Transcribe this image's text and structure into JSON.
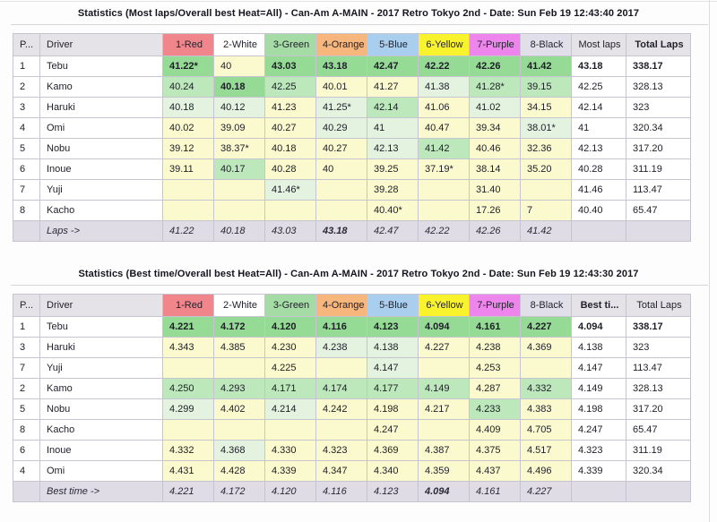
{
  "colors": {
    "heat": {
      "red": "#f0868c",
      "white": "#ffffff",
      "green": "#a5dba5",
      "orange": "#f6b67c",
      "blue": "#aacfee",
      "yellow": "#f9f32e",
      "purple": "#ee85ec",
      "black": "#e1dfe9",
      "gray": "#e5e3e8"
    },
    "cell": {
      "g1": "#95db95",
      "g2": "#bde8bb",
      "g3": "#e3f3e0",
      "y": "#fbface",
      "w": "#ffffff"
    },
    "footer_bg": "#dfdce5"
  },
  "tables": [
    {
      "title": "Statistics (Most laps/Overall best Heat=All) - Can-Am A-MAIN - 2017 Retro Tokyo 2nd - Date: Sun Feb 19 12:43:40 2017",
      "columns": [
        {
          "label": "P...",
          "bg": "gray"
        },
        {
          "label": "Driver",
          "bg": "gray"
        },
        {
          "label": "1-Red",
          "bg": "red"
        },
        {
          "label": "2-White",
          "bg": "white"
        },
        {
          "label": "3-Green",
          "bg": "green"
        },
        {
          "label": "4-Orange",
          "bg": "orange"
        },
        {
          "label": "5-Blue",
          "bg": "blue"
        },
        {
          "label": "6-Yellow",
          "bg": "yellow"
        },
        {
          "label": "7-Purple",
          "bg": "purple"
        },
        {
          "label": "8-Black",
          "bg": "black"
        },
        {
          "label": "Most laps",
          "bg": "gray"
        },
        {
          "label": "Total Laps",
          "bg": "gray",
          "bold": true
        }
      ],
      "rows": [
        {
          "pos": "1",
          "driver": "Tebu",
          "cells": [
            {
              "v": "41.22*",
              "c": "g1",
              "b": true
            },
            {
              "v": "40",
              "c": "y"
            },
            {
              "v": "43.03",
              "c": "g1",
              "b": true
            },
            {
              "v": "43.18",
              "c": "g1",
              "b": true
            },
            {
              "v": "42.47",
              "c": "g1",
              "b": true
            },
            {
              "v": "42.22",
              "c": "g1",
              "b": true
            },
            {
              "v": "42.26",
              "c": "g1",
              "b": true
            },
            {
              "v": "41.42",
              "c": "g1",
              "b": true
            }
          ],
          "summary": {
            "v": "43.18",
            "b": true
          },
          "total": {
            "v": "338.17",
            "b": true
          }
        },
        {
          "pos": "2",
          "driver": "Kamo",
          "cells": [
            {
              "v": "40.24",
              "c": "g2"
            },
            {
              "v": "40.18",
              "c": "g1",
              "b": true
            },
            {
              "v": "42.25",
              "c": "g2"
            },
            {
              "v": "40.01",
              "c": "y"
            },
            {
              "v": "41.27",
              "c": "y"
            },
            {
              "v": "41.38",
              "c": "g3"
            },
            {
              "v": "41.28*",
              "c": "g2"
            },
            {
              "v": "39.15",
              "c": "g2"
            }
          ],
          "summary": {
            "v": "42.25"
          },
          "total": {
            "v": "328.13"
          }
        },
        {
          "pos": "3",
          "driver": "Haruki",
          "cells": [
            {
              "v": "40.18",
              "c": "g3"
            },
            {
              "v": "40.12",
              "c": "g3"
            },
            {
              "v": "41.23",
              "c": "y"
            },
            {
              "v": "41.25*",
              "c": "g3"
            },
            {
              "v": "42.14",
              "c": "g2"
            },
            {
              "v": "41.06",
              "c": "y"
            },
            {
              "v": "41.02",
              "c": "g3"
            },
            {
              "v": "34.15",
              "c": "y"
            }
          ],
          "summary": {
            "v": "42.14"
          },
          "total": {
            "v": "323"
          }
        },
        {
          "pos": "4",
          "driver": "Omi",
          "cells": [
            {
              "v": "40.02",
              "c": "y"
            },
            {
              "v": "39.09",
              "c": "y"
            },
            {
              "v": "40.27",
              "c": "y"
            },
            {
              "v": "40.29",
              "c": "g3"
            },
            {
              "v": "41",
              "c": "g3"
            },
            {
              "v": "40.47",
              "c": "y"
            },
            {
              "v": "39.34",
              "c": "y"
            },
            {
              "v": "38.01*",
              "c": "g3"
            }
          ],
          "summary": {
            "v": "41"
          },
          "total": {
            "v": "320.34"
          }
        },
        {
          "pos": "5",
          "driver": "Nobu",
          "cells": [
            {
              "v": "39.12",
              "c": "y"
            },
            {
              "v": "38.37*",
              "c": "y"
            },
            {
              "v": "40.18",
              "c": "y"
            },
            {
              "v": "40.27",
              "c": "y"
            },
            {
              "v": "42.13",
              "c": "g3"
            },
            {
              "v": "41.42",
              "c": "g2"
            },
            {
              "v": "40.46",
              "c": "y"
            },
            {
              "v": "32.36",
              "c": "y"
            }
          ],
          "summary": {
            "v": "42.13"
          },
          "total": {
            "v": "317.20"
          }
        },
        {
          "pos": "6",
          "driver": "Inoue",
          "cells": [
            {
              "v": "39.11",
              "c": "y"
            },
            {
              "v": "40.17",
              "c": "g2"
            },
            {
              "v": "40.28",
              "c": "y"
            },
            {
              "v": "40",
              "c": "y"
            },
            {
              "v": "39.25",
              "c": "y"
            },
            {
              "v": "37.19*",
              "c": "y"
            },
            {
              "v": "38.14",
              "c": "y"
            },
            {
              "v": "35.20",
              "c": "y"
            }
          ],
          "summary": {
            "v": "40.28"
          },
          "total": {
            "v": "311.19"
          }
        },
        {
          "pos": "7",
          "driver": "Yuji",
          "cells": [
            {
              "v": "",
              "c": "y"
            },
            {
              "v": "",
              "c": "y"
            },
            {
              "v": "41.46*",
              "c": "g3"
            },
            {
              "v": "",
              "c": "y"
            },
            {
              "v": "39.28",
              "c": "y"
            },
            {
              "v": "",
              "c": "y"
            },
            {
              "v": "31.40",
              "c": "y"
            },
            {
              "v": "",
              "c": "y"
            }
          ],
          "summary": {
            "v": "41.46"
          },
          "total": {
            "v": "113.47"
          }
        },
        {
          "pos": "8",
          "driver": "Kacho",
          "cells": [
            {
              "v": "",
              "c": "y"
            },
            {
              "v": "",
              "c": "y"
            },
            {
              "v": "",
              "c": "y"
            },
            {
              "v": "",
              "c": "y"
            },
            {
              "v": "40.40*",
              "c": "y"
            },
            {
              "v": "",
              "c": "y"
            },
            {
              "v": "17.26",
              "c": "y"
            },
            {
              "v": "7",
              "c": "y"
            }
          ],
          "summary": {
            "v": "40.40"
          },
          "total": {
            "v": "65.47"
          }
        }
      ],
      "footer": {
        "label": "Laps ->",
        "cells": [
          {
            "v": "41.22"
          },
          {
            "v": "40.18"
          },
          {
            "v": "43.03"
          },
          {
            "v": "43.18",
            "b": true
          },
          {
            "v": "42.47"
          },
          {
            "v": "42.22"
          },
          {
            "v": "42.26"
          },
          {
            "v": "41.42"
          }
        ]
      }
    },
    {
      "title": "Statistics (Best time/Overall best Heat=All) - Can-Am A-MAIN - 2017 Retro Tokyo 2nd - Date: Sun Feb 19 12:43:30 2017",
      "columns": [
        {
          "label": "P...",
          "bg": "gray"
        },
        {
          "label": "Driver",
          "bg": "gray"
        },
        {
          "label": "1-Red",
          "bg": "red"
        },
        {
          "label": "2-White",
          "bg": "white"
        },
        {
          "label": "3-Green",
          "bg": "green"
        },
        {
          "label": "4-Orange",
          "bg": "orange"
        },
        {
          "label": "5-Blue",
          "bg": "blue"
        },
        {
          "label": "6-Yellow",
          "bg": "yellow"
        },
        {
          "label": "7-Purple",
          "bg": "purple"
        },
        {
          "label": "8-Black",
          "bg": "black"
        },
        {
          "label": "Best ti...",
          "bg": "gray",
          "bold": true
        },
        {
          "label": "Total Laps",
          "bg": "gray"
        }
      ],
      "rows": [
        {
          "pos": "1",
          "driver": "Tebu",
          "cells": [
            {
              "v": "4.221",
              "c": "g1",
              "b": true
            },
            {
              "v": "4.172",
              "c": "g1",
              "b": true
            },
            {
              "v": "4.120",
              "c": "g1",
              "b": true
            },
            {
              "v": "4.116",
              "c": "g1",
              "b": true
            },
            {
              "v": "4.123",
              "c": "g1",
              "b": true
            },
            {
              "v": "4.094",
              "c": "g1",
              "b": true
            },
            {
              "v": "4.161",
              "c": "g1",
              "b": true
            },
            {
              "v": "4.227",
              "c": "g1",
              "b": true
            }
          ],
          "summary": {
            "v": "4.094",
            "b": true
          },
          "total": {
            "v": "338.17",
            "b": true
          }
        },
        {
          "pos": "3",
          "driver": "Haruki",
          "cells": [
            {
              "v": "4.343",
              "c": "y"
            },
            {
              "v": "4.385",
              "c": "y"
            },
            {
              "v": "4.230",
              "c": "y"
            },
            {
              "v": "4.238",
              "c": "g3"
            },
            {
              "v": "4.138",
              "c": "g3"
            },
            {
              "v": "4.227",
              "c": "y"
            },
            {
              "v": "4.238",
              "c": "y"
            },
            {
              "v": "4.369",
              "c": "y"
            }
          ],
          "summary": {
            "v": "4.138"
          },
          "total": {
            "v": "323"
          }
        },
        {
          "pos": "7",
          "driver": "Yuji",
          "cells": [
            {
              "v": "",
              "c": "y"
            },
            {
              "v": "",
              "c": "y"
            },
            {
              "v": "4.225",
              "c": "y"
            },
            {
              "v": "",
              "c": "y"
            },
            {
              "v": "4.147",
              "c": "g3"
            },
            {
              "v": "",
              "c": "y"
            },
            {
              "v": "4.253",
              "c": "y"
            },
            {
              "v": "",
              "c": "y"
            }
          ],
          "summary": {
            "v": "4.147"
          },
          "total": {
            "v": "113.47"
          }
        },
        {
          "pos": "2",
          "driver": "Kamo",
          "cells": [
            {
              "v": "4.250",
              "c": "g2"
            },
            {
              "v": "4.293",
              "c": "g2"
            },
            {
              "v": "4.171",
              "c": "g2"
            },
            {
              "v": "4.174",
              "c": "g2"
            },
            {
              "v": "4.177",
              "c": "g2"
            },
            {
              "v": "4.149",
              "c": "g2"
            },
            {
              "v": "4.287",
              "c": "y"
            },
            {
              "v": "4.332",
              "c": "g2"
            }
          ],
          "summary": {
            "v": "4.149"
          },
          "total": {
            "v": "328.13"
          }
        },
        {
          "pos": "5",
          "driver": "Nobu",
          "cells": [
            {
              "v": "4.299",
              "c": "g3"
            },
            {
              "v": "4.402",
              "c": "y"
            },
            {
              "v": "4.214",
              "c": "g3"
            },
            {
              "v": "4.242",
              "c": "y"
            },
            {
              "v": "4.198",
              "c": "y"
            },
            {
              "v": "4.217",
              "c": "y"
            },
            {
              "v": "4.233",
              "c": "g2"
            },
            {
              "v": "4.383",
              "c": "y"
            }
          ],
          "summary": {
            "v": "4.198"
          },
          "total": {
            "v": "317.20"
          }
        },
        {
          "pos": "8",
          "driver": "Kacho",
          "cells": [
            {
              "v": "",
              "c": "y"
            },
            {
              "v": "",
              "c": "y"
            },
            {
              "v": "",
              "c": "y"
            },
            {
              "v": "",
              "c": "y"
            },
            {
              "v": "4.247",
              "c": "y"
            },
            {
              "v": "",
              "c": "y"
            },
            {
              "v": "4.409",
              "c": "y"
            },
            {
              "v": "4.705",
              "c": "y"
            }
          ],
          "summary": {
            "v": "4.247"
          },
          "total": {
            "v": "65.47"
          }
        },
        {
          "pos": "6",
          "driver": "Inoue",
          "cells": [
            {
              "v": "4.332",
              "c": "y"
            },
            {
              "v": "4.368",
              "c": "g3"
            },
            {
              "v": "4.330",
              "c": "y"
            },
            {
              "v": "4.323",
              "c": "y"
            },
            {
              "v": "4.369",
              "c": "y"
            },
            {
              "v": "4.387",
              "c": "y"
            },
            {
              "v": "4.375",
              "c": "y"
            },
            {
              "v": "4.517",
              "c": "y"
            }
          ],
          "summary": {
            "v": "4.323"
          },
          "total": {
            "v": "311.19"
          }
        },
        {
          "pos": "4",
          "driver": "Omi",
          "cells": [
            {
              "v": "4.431",
              "c": "y"
            },
            {
              "v": "4.428",
              "c": "y"
            },
            {
              "v": "4.339",
              "c": "y"
            },
            {
              "v": "4.347",
              "c": "y"
            },
            {
              "v": "4.340",
              "c": "y"
            },
            {
              "v": "4.359",
              "c": "y"
            },
            {
              "v": "4.437",
              "c": "y"
            },
            {
              "v": "4.496",
              "c": "y"
            }
          ],
          "summary": {
            "v": "4.339"
          },
          "total": {
            "v": "320.34"
          }
        }
      ],
      "footer": {
        "label": "Best time ->",
        "cells": [
          {
            "v": "4.221"
          },
          {
            "v": "4.172"
          },
          {
            "v": "4.120"
          },
          {
            "v": "4.116"
          },
          {
            "v": "4.123"
          },
          {
            "v": "4.094",
            "b": true
          },
          {
            "v": "4.161"
          },
          {
            "v": "4.227"
          }
        ]
      }
    }
  ]
}
